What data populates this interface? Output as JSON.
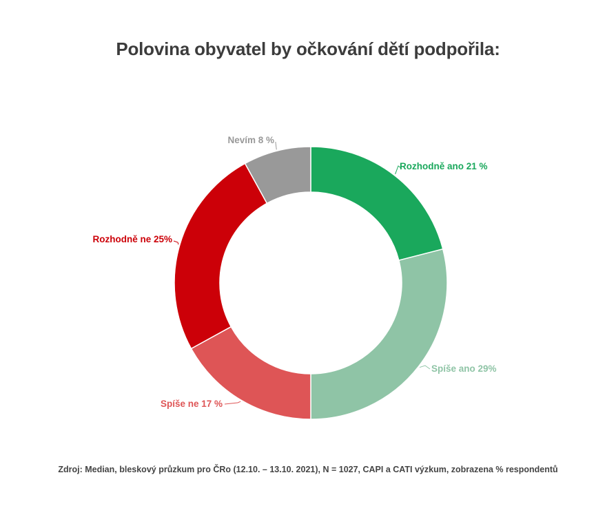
{
  "title": "Polovina obyvatel by očkování dětí podpořila:",
  "source": "Zdroj: Median, bleskový průzkum pro ČRo (12.10. – 13.10. 2021), N = 1027, CAPI a CATI výzkum, zobrazena % respondentů",
  "chart_data": {
    "type": "pie",
    "donut": true,
    "title": "Polovina obyvatel by očkování dětí podpořila:",
    "slices": [
      {
        "name": "Rozhodně ano",
        "value": 21,
        "label": "Rozhodně ano 21 %",
        "color": "#1aa85c"
      },
      {
        "name": "Spíše ano",
        "value": 29,
        "label": "Spíše ano 29%",
        "color": "#8fc4a6"
      },
      {
        "name": "Spíše ne",
        "value": 17,
        "label": "Spíše ne 17 %",
        "color": "#de5556"
      },
      {
        "name": "Rozhodně ne",
        "value": 25,
        "label": "Rozhodně ne 25%",
        "color": "#cc0008"
      },
      {
        "name": "Nevím",
        "value": 8,
        "label": "Nevím 8 %",
        "color": "#999999"
      }
    ]
  }
}
